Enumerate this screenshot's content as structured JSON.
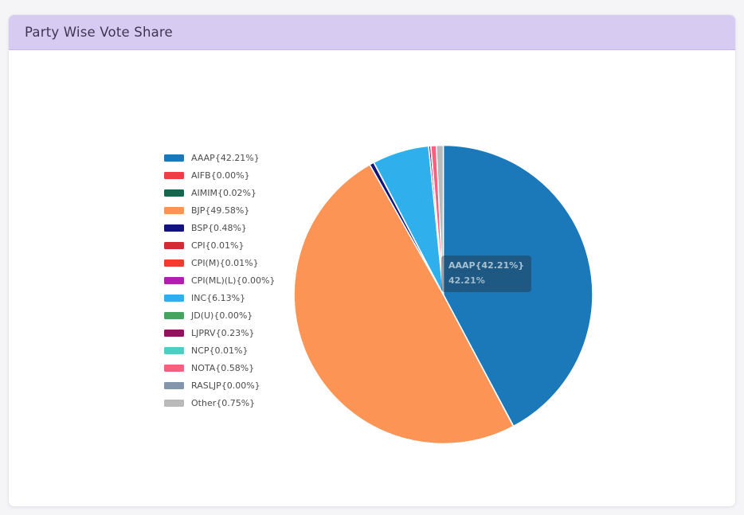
{
  "header": {
    "title": "Party Wise Vote Share"
  },
  "chart_data": {
    "type": "pie",
    "title": "Party Wise Vote Share",
    "legend_position": "left",
    "start_angle": "top",
    "direction": "clockwise",
    "unit": "percent_vote_share",
    "slices": [
      {
        "party": "AAAP",
        "label": "AAAP{42.21%}",
        "value": 42.21,
        "color": "#1b79b9"
      },
      {
        "party": "AIFB",
        "label": "AIFB{0.00%}",
        "value": 0.0,
        "color": "#ef3e45"
      },
      {
        "party": "AIMIM",
        "label": "AIMIM{0.02%}",
        "value": 0.02,
        "color": "#15684e"
      },
      {
        "party": "BJP",
        "label": "BJP{49.58%}",
        "value": 49.58,
        "color": "#fb9454"
      },
      {
        "party": "BSP",
        "label": "BSP{0.48%}",
        "value": 0.48,
        "color": "#13137d"
      },
      {
        "party": "CPI",
        "label": "CPI{0.01%}",
        "value": 0.01,
        "color": "#d42a33"
      },
      {
        "party": "CPI(M)",
        "label": "CPI(M){0.01%}",
        "value": 0.01,
        "color": "#f43a2e"
      },
      {
        "party": "CPI(ML)(L)",
        "label": "CPI(ML)(L){0.00%}",
        "value": 0.0,
        "color": "#b11fb1"
      },
      {
        "party": "INC",
        "label": "INC{6.13%}",
        "value": 6.13,
        "color": "#2fb0ec"
      },
      {
        "party": "JD(U)",
        "label": "JD(U){0.00%}",
        "value": 0.0,
        "color": "#47a45f"
      },
      {
        "party": "LJPRV",
        "label": "LJPRV{0.23%}",
        "value": 0.23,
        "color": "#97105f"
      },
      {
        "party": "NCP",
        "label": "NCP{0.01%}",
        "value": 0.01,
        "color": "#4ecfc5"
      },
      {
        "party": "NOTA",
        "label": "NOTA{0.58%}",
        "value": 0.58,
        "color": "#f9607f"
      },
      {
        "party": "RASLJP",
        "label": "RASLJP{0.00%}",
        "value": 0.0,
        "color": "#8496ab"
      },
      {
        "party": "Other",
        "label": "Other{0.75%}",
        "value": 0.75,
        "color": "#b9b9b9"
      }
    ]
  },
  "tooltip": {
    "title": "AAAP{42.21%}",
    "value": "42.21%"
  },
  "layout_colors": {
    "page_bg": "#f5f4f7",
    "card_bg": "#ffffff",
    "header_bg": "#d8cbf2",
    "header_text": "#3f3552",
    "slice_border": "#ffffff"
  }
}
